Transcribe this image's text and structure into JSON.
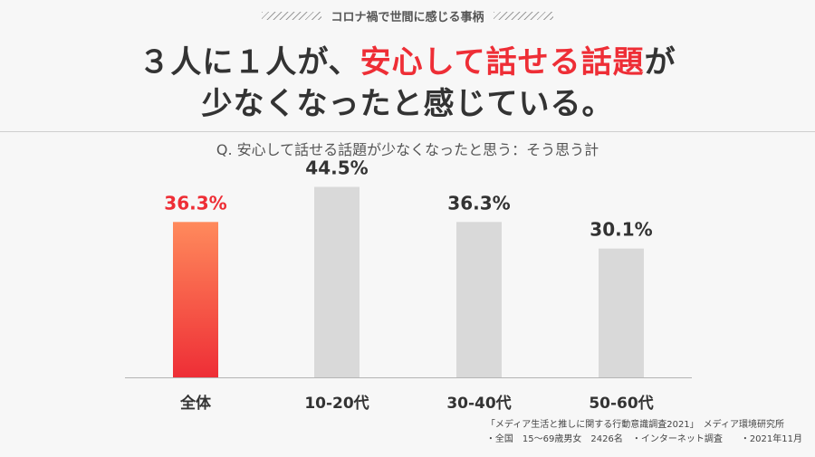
{
  "header": {
    "section_label": "コロナ禍で世間に感じる事柄",
    "headline_prefix": "３人に１人が、",
    "headline_accent": "安心して話せる話題",
    "headline_suffix": "が",
    "headline_line2": "少なくなったと感じている。"
  },
  "question": "Q. 安心して話せる話題が少なくなったと思う：そう思う計",
  "colors": {
    "accent": "#ee2e36",
    "bar_gray": "#d9d9d9",
    "bar_highlight_top": "#ff8a5c",
    "bar_highlight_bottom": "#ee2e36"
  },
  "chart_data": {
    "type": "bar",
    "categories": [
      "全体",
      "10-20代",
      "30-40代",
      "50-60代"
    ],
    "values": [
      36.3,
      44.5,
      36.3,
      30.1
    ],
    "value_labels": [
      "36.3%",
      "44.5%",
      "36.3%",
      "30.1%"
    ],
    "highlight_index": 0,
    "unit": "%",
    "ylim": [
      0,
      50
    ],
    "grid": false,
    "legend": "none"
  },
  "source": {
    "line1": "「メディア生活と推しに関する行動意識調査2021」　メディア環境研究所",
    "line2": "・全国　15～69歳男女　2426名　・インターネット調査　　・2021年11月"
  }
}
